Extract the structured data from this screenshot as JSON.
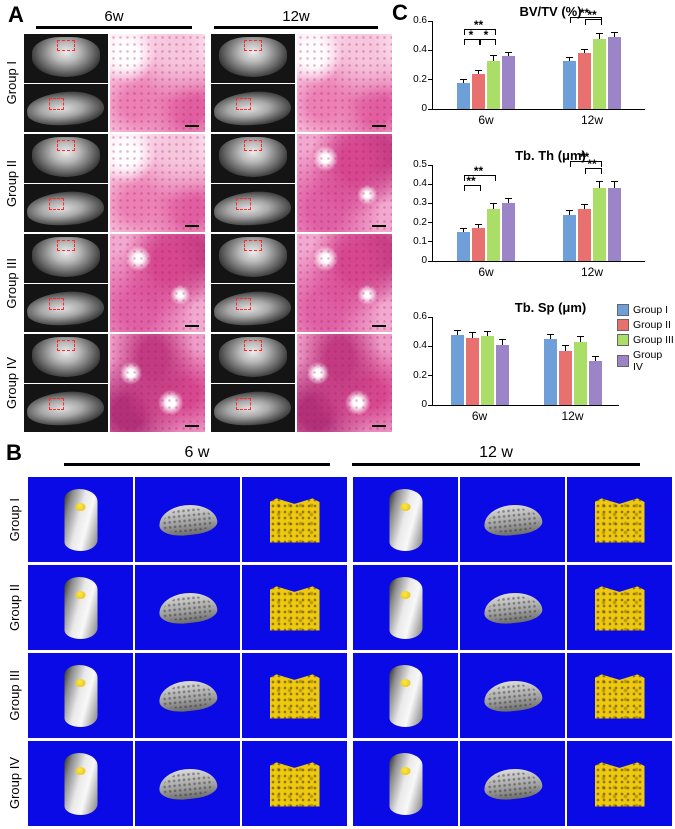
{
  "figure": {
    "panel_a_label": "A",
    "panel_b_label": "B",
    "panel_c_label": "C"
  },
  "panel_a": {
    "headers": [
      "6w",
      "12w"
    ],
    "rows": [
      "Group I",
      "Group II",
      "Group III",
      "Group IV"
    ]
  },
  "panel_b": {
    "headers": [
      "6 w",
      "12 w"
    ],
    "rows": [
      "Group I",
      "Group II",
      "Group III",
      "Group IV"
    ]
  },
  "legend": [
    {
      "label": "Group I",
      "color": "#6f9fd8"
    },
    {
      "label": "Group II",
      "color": "#e8716f"
    },
    {
      "label": "Group III",
      "color": "#abde66"
    },
    {
      "label": "Group IV",
      "color": "#9b85c6"
    }
  ],
  "chart_data": [
    {
      "type": "bar",
      "title": "BV/TV (%)",
      "categories": [
        "6w",
        "12w"
      ],
      "series": [
        {
          "name": "Group I",
          "values": [
            0.18,
            0.33
          ],
          "errors": [
            0.02,
            0.02
          ]
        },
        {
          "name": "Group II",
          "values": [
            0.24,
            0.38
          ],
          "errors": [
            0.02,
            0.025
          ]
        },
        {
          "name": "Group III",
          "values": [
            0.33,
            0.48
          ],
          "errors": [
            0.03,
            0.03
          ]
        },
        {
          "name": "Group IV",
          "values": [
            0.36,
            0.49
          ],
          "errors": [
            0.025,
            0.03
          ]
        }
      ],
      "ylim": [
        0,
        0.6
      ],
      "yticks": [
        "0",
        "0.2",
        "0.4",
        "0.6"
      ],
      "grid": false,
      "annotations": [
        {
          "category": 0,
          "from": 0,
          "to": 2,
          "label": "**",
          "level": 2
        },
        {
          "category": 0,
          "from": 0,
          "to": 1,
          "label": "*",
          "level": 1
        },
        {
          "category": 0,
          "from": 1,
          "to": 2,
          "label": "*",
          "level": 1
        },
        {
          "category": 1,
          "from": 0,
          "to": 2,
          "label": "**",
          "level": 2
        },
        {
          "category": 1,
          "from": 1,
          "to": 2,
          "label": "**",
          "level": 1
        }
      ]
    },
    {
      "type": "bar",
      "title": "Tb. Th (μm)",
      "categories": [
        "6w",
        "12w"
      ],
      "series": [
        {
          "name": "Group I",
          "values": [
            0.15,
            0.24
          ],
          "errors": [
            0.015,
            0.02
          ]
        },
        {
          "name": "Group II",
          "values": [
            0.17,
            0.27
          ],
          "errors": [
            0.02,
            0.02
          ]
        },
        {
          "name": "Group III",
          "values": [
            0.27,
            0.38
          ],
          "errors": [
            0.025,
            0.03
          ]
        },
        {
          "name": "Group IV",
          "values": [
            0.3,
            0.38
          ],
          "errors": [
            0.025,
            0.03
          ]
        }
      ],
      "ylim": [
        0,
        0.5
      ],
      "yticks": [
        "0",
        "0.1",
        "0.2",
        "0.3",
        "0.4",
        "0.5"
      ],
      "grid": false,
      "annotations": [
        {
          "category": 0,
          "from": 0,
          "to": 2,
          "label": "**",
          "level": 2
        },
        {
          "category": 0,
          "from": 0,
          "to": 1,
          "label": "**",
          "level": 1
        },
        {
          "category": 1,
          "from": 0,
          "to": 2,
          "label": "**",
          "level": 2
        },
        {
          "category": 1,
          "from": 1,
          "to": 2,
          "label": "**",
          "level": 1
        }
      ]
    },
    {
      "type": "bar",
      "title": "Tb. Sp (μm)",
      "categories": [
        "6w",
        "12w"
      ],
      "series": [
        {
          "name": "Group I",
          "values": [
            0.48,
            0.45
          ],
          "errors": [
            0.025,
            0.03
          ]
        },
        {
          "name": "Group II",
          "values": [
            0.46,
            0.37
          ],
          "errors": [
            0.03,
            0.03
          ]
        },
        {
          "name": "Group III",
          "values": [
            0.47,
            0.43
          ],
          "errors": [
            0.03,
            0.035
          ]
        },
        {
          "name": "Group IV",
          "values": [
            0.41,
            0.3
          ],
          "errors": [
            0.03,
            0.03
          ]
        }
      ],
      "ylim": [
        0,
        0.6
      ],
      "yticks": [
        "0",
        "0.2",
        "0.4",
        "0.6"
      ],
      "grid": false,
      "legend_position": "right",
      "annotations": []
    }
  ]
}
